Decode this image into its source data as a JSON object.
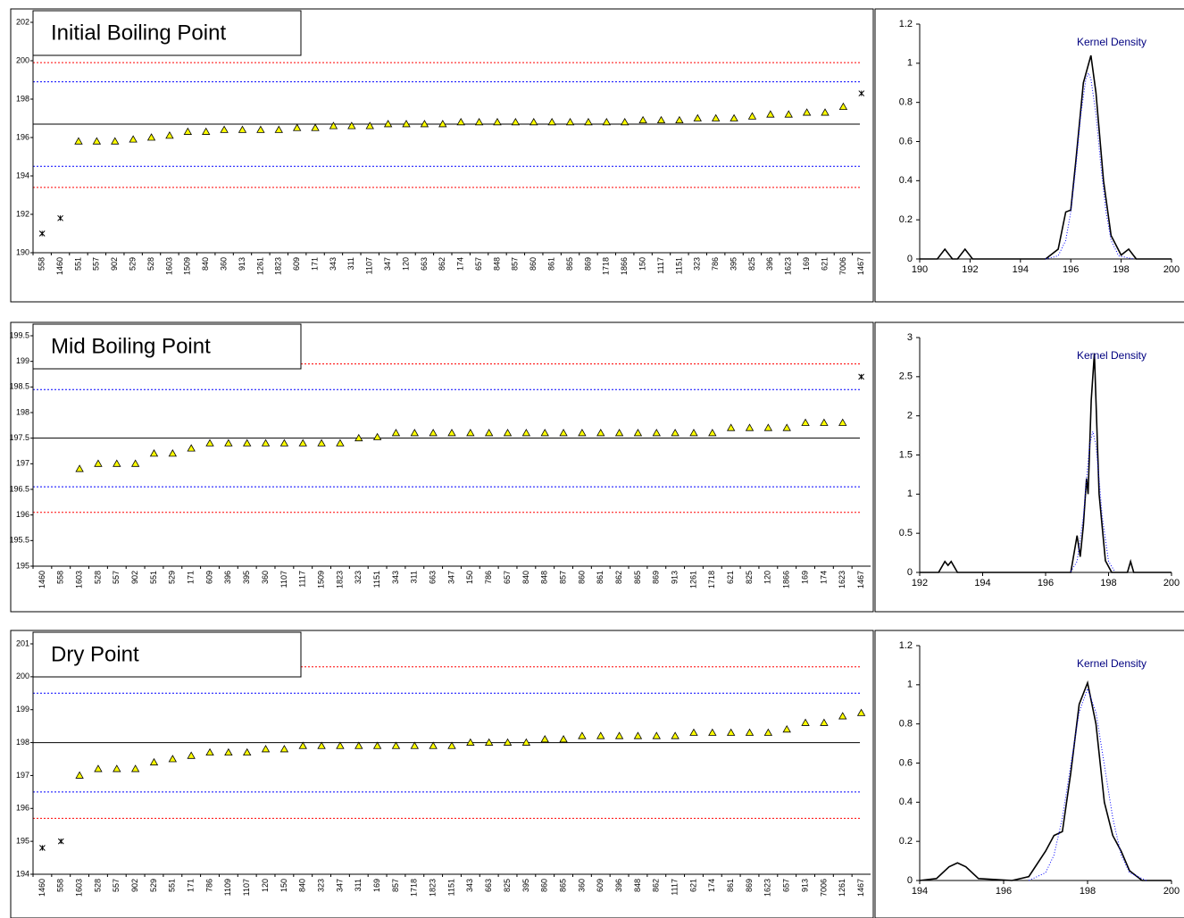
{
  "chart_data": [
    {
      "type": "scatter",
      "title": "Initial Boiling Point",
      "categories": [
        "558",
        "1460",
        "551",
        "557",
        "902",
        "529",
        "528",
        "1603",
        "1509",
        "840",
        "360",
        "913",
        "1261",
        "1823",
        "609",
        "171",
        "343",
        "311",
        "1107",
        "347",
        "120",
        "663",
        "862",
        "174",
        "657",
        "848",
        "857",
        "860",
        "861",
        "865",
        "869",
        "1718",
        "1866",
        "150",
        "1117",
        "1151",
        "323",
        "786",
        "395",
        "825",
        "396",
        "1623",
        "169",
        "621",
        "7006",
        "1467"
      ],
      "values": [
        191.0,
        191.8,
        195.8,
        195.8,
        195.8,
        195.9,
        196.0,
        196.1,
        196.3,
        196.3,
        196.4,
        196.4,
        196.4,
        196.4,
        196.5,
        196.5,
        196.6,
        196.6,
        196.6,
        196.7,
        196.7,
        196.7,
        196.7,
        196.8,
        196.8,
        196.8,
        196.8,
        196.8,
        196.8,
        196.8,
        196.8,
        196.8,
        196.8,
        196.9,
        196.9,
        196.9,
        197.0,
        197.0,
        197.0,
        197.1,
        197.2,
        197.2,
        197.3,
        197.3,
        197.6,
        198.3
      ],
      "outlier_indices": [
        0,
        1,
        45
      ],
      "color": "#ffff00",
      "reference_lines": [
        {
          "value": 196.7,
          "color": "#000000",
          "dash": "none"
        },
        {
          "value": 194.5,
          "color": "#0000ff",
          "dash": "2,2"
        },
        {
          "value": 198.9,
          "color": "#0000ff",
          "dash": "2,2"
        },
        {
          "value": 193.4,
          "color": "#ff0000",
          "dash": "2,2"
        },
        {
          "value": 199.9,
          "color": "#ff0000",
          "dash": "2,2"
        }
      ],
      "ylim": [
        190,
        202
      ],
      "yticks": [
        190,
        192,
        194,
        196,
        198,
        200,
        202
      ]
    },
    {
      "type": "line",
      "annotation": "Kernel Density",
      "series": [
        {
          "color": "#000000",
          "dash": "none",
          "x": [
            190,
            190.7,
            191,
            191.3,
            191.5,
            191.8,
            192.1,
            192.5,
            195,
            195.5,
            195.8,
            196,
            196.2,
            196.5,
            196.8,
            197,
            197.3,
            197.6,
            198,
            198.3,
            198.6,
            199,
            200
          ],
          "values": [
            0,
            0,
            0.05,
            0,
            0,
            0.05,
            0,
            0,
            0,
            0.05,
            0.24,
            0.25,
            0.5,
            0.9,
            1.04,
            0.85,
            0.4,
            0.12,
            0.02,
            0.05,
            0,
            0,
            0
          ]
        },
        {
          "color": "#0000ff",
          "dash": "1,2",
          "x": [
            195,
            195.5,
            195.8,
            196,
            196.2,
            196.4,
            196.6,
            196.7,
            196.8,
            197,
            197.2,
            197.4,
            197.6,
            197.9,
            198.5
          ],
          "values": [
            0,
            0.016,
            0.095,
            0.24,
            0.47,
            0.74,
            0.92,
            0.95,
            0.92,
            0.74,
            0.47,
            0.24,
            0.095,
            0.016,
            0
          ]
        }
      ],
      "xlim": [
        190,
        200
      ],
      "xticks": [
        190,
        192,
        194,
        196,
        198,
        200
      ],
      "ylim": [
        0,
        1.2
      ],
      "yticks": [
        0,
        0.2,
        0.4,
        0.6,
        0.8,
        1,
        1.2
      ]
    },
    {
      "type": "scatter",
      "title": "Mid Boiling Point",
      "categories": [
        "1460",
        "558",
        "1603",
        "528",
        "557",
        "902",
        "551",
        "529",
        "171",
        "609",
        "396",
        "395",
        "360",
        "1107",
        "1117",
        "1509",
        "1823",
        "323",
        "1151",
        "343",
        "311",
        "663",
        "347",
        "150",
        "786",
        "657",
        "840",
        "848",
        "857",
        "860",
        "861",
        "862",
        "865",
        "869",
        "913",
        "1261",
        "1718",
        "621",
        "825",
        "120",
        "1866",
        "169",
        "174",
        "1623",
        "1467"
      ],
      "values": [
        null,
        null,
        196.9,
        197.0,
        197.0,
        197.0,
        197.2,
        197.2,
        197.3,
        197.4,
        197.4,
        197.4,
        197.4,
        197.4,
        197.4,
        197.4,
        197.4,
        197.5,
        197.52,
        197.6,
        197.6,
        197.6,
        197.6,
        197.6,
        197.6,
        197.6,
        197.6,
        197.6,
        197.6,
        197.6,
        197.6,
        197.6,
        197.6,
        197.6,
        197.6,
        197.6,
        197.6,
        197.7,
        197.7,
        197.7,
        197.7,
        197.8,
        197.8,
        197.8,
        198.7
      ],
      "outlier_indices": [
        0,
        1,
        44
      ],
      "color": "#ffff00",
      "reference_lines": [
        {
          "value": 197.5,
          "color": "#000000",
          "dash": "none"
        },
        {
          "value": 196.55,
          "color": "#0000ff",
          "dash": "2,2"
        },
        {
          "value": 198.45,
          "color": "#0000ff",
          "dash": "2,2"
        },
        {
          "value": 196.05,
          "color": "#ff0000",
          "dash": "2,2"
        },
        {
          "value": 198.95,
          "color": "#ff0000",
          "dash": "2,2"
        }
      ],
      "ylim": [
        195,
        199.5
      ],
      "yticks": [
        195,
        195.5,
        196,
        196.5,
        197,
        197.5,
        198,
        198.5,
        199,
        199.5
      ]
    },
    {
      "type": "line",
      "annotation": "Kernel Density",
      "series": [
        {
          "color": "#000000",
          "dash": "none",
          "x": [
            192,
            192.6,
            192.8,
            192.9,
            193,
            193.2,
            196.8,
            197,
            197.1,
            197.2,
            197.3,
            197.35,
            197.45,
            197.55,
            197.7,
            197.9,
            198.1,
            198.6,
            198.7,
            198.8,
            200
          ],
          "values": [
            0,
            0,
            0.14,
            0.09,
            0.14,
            0,
            0,
            0.47,
            0.2,
            0.6,
            1.2,
            1.0,
            2.2,
            2.8,
            1.0,
            0.15,
            0,
            0,
            0.14,
            0,
            0
          ]
        },
        {
          "color": "#0000ff",
          "dash": "1,2",
          "x": [
            196.8,
            197,
            197.2,
            197.3,
            197.4,
            197.5,
            197.6,
            197.7,
            197.8,
            198,
            198.2
          ],
          "values": [
            0.01,
            0.14,
            0.71,
            1.19,
            1.63,
            1.8,
            1.63,
            1.19,
            0.71,
            0.14,
            0.01
          ]
        }
      ],
      "xlim": [
        192,
        200
      ],
      "xticks": [
        192,
        194,
        196,
        198,
        200
      ],
      "ylim": [
        0,
        3
      ],
      "yticks": [
        0,
        0.5,
        1,
        1.5,
        2,
        2.5,
        3
      ]
    },
    {
      "type": "scatter",
      "title": "Dry Point",
      "categories": [
        "1460",
        "558",
        "1603",
        "528",
        "557",
        "902",
        "529",
        "551",
        "171",
        "786",
        "1109",
        "1107",
        "120",
        "150",
        "840",
        "323",
        "347",
        "311",
        "169",
        "857",
        "1718",
        "1823",
        "1151",
        "343",
        "663",
        "825",
        "395",
        "860",
        "865",
        "360",
        "609",
        "396",
        "848",
        "862",
        "1117",
        "621",
        "174",
        "861",
        "869",
        "1623",
        "657",
        "913",
        "7006",
        "1261",
        "1467"
      ],
      "values": [
        194.8,
        195.0,
        197.0,
        197.2,
        197.2,
        197.2,
        197.4,
        197.5,
        197.6,
        197.7,
        197.7,
        197.7,
        197.8,
        197.8,
        197.9,
        197.9,
        197.9,
        197.9,
        197.9,
        197.9,
        197.9,
        197.9,
        197.9,
        198.0,
        198.0,
        198.0,
        198.0,
        198.1,
        198.1,
        198.2,
        198.2,
        198.2,
        198.2,
        198.2,
        198.2,
        198.3,
        198.3,
        198.3,
        198.3,
        198.3,
        198.4,
        198.6,
        198.6,
        198.8,
        198.9
      ],
      "outlier_indices": [
        0,
        1
      ],
      "color": "#ffff00",
      "reference_lines": [
        {
          "value": 198.0,
          "color": "#000000",
          "dash": "none"
        },
        {
          "value": 196.5,
          "color": "#0000ff",
          "dash": "2,2"
        },
        {
          "value": 199.5,
          "color": "#0000ff",
          "dash": "2,2"
        },
        {
          "value": 195.7,
          "color": "#ff0000",
          "dash": "2,2"
        },
        {
          "value": 200.3,
          "color": "#ff0000",
          "dash": "2,2"
        }
      ],
      "ylim": [
        194,
        201
      ],
      "yticks": [
        194,
        195,
        196,
        197,
        198,
        199,
        200,
        201
      ]
    },
    {
      "type": "line",
      "annotation": "Kernel Density",
      "series": [
        {
          "color": "#000000",
          "dash": "none",
          "x": [
            194,
            194.4,
            194.7,
            194.9,
            195.1,
            195.4,
            196.2,
            196.6,
            197,
            197.2,
            197.4,
            197.6,
            197.8,
            198,
            198.2,
            198.4,
            198.6,
            198.8,
            199,
            199.3,
            200
          ],
          "values": [
            0,
            0.01,
            0.07,
            0.09,
            0.07,
            0.01,
            0,
            0.02,
            0.15,
            0.23,
            0.25,
            0.55,
            0.9,
            1.01,
            0.8,
            0.4,
            0.23,
            0.15,
            0.05,
            0,
            0
          ]
        },
        {
          "color": "#0000ff",
          "dash": "1,2",
          "x": [
            196.6,
            197,
            197.2,
            197.4,
            197.6,
            197.8,
            198,
            198.2,
            198.4,
            198.6,
            198.8,
            199,
            199.4
          ],
          "values": [
            0,
            0.04,
            0.13,
            0.32,
            0.59,
            0.86,
            0.98,
            0.86,
            0.59,
            0.32,
            0.13,
            0.04,
            0
          ]
        }
      ],
      "xlim": [
        194,
        200
      ],
      "xticks": [
        194,
        196,
        198,
        200
      ],
      "ylim": [
        0,
        1.2
      ],
      "yticks": [
        0,
        0.2,
        0.4,
        0.6,
        0.8,
        1,
        1.2
      ]
    }
  ]
}
